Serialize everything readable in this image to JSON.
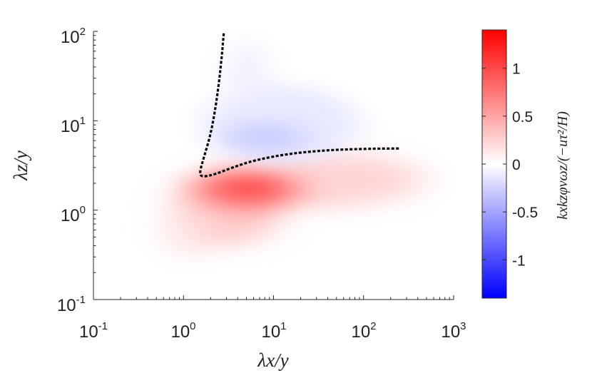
{
  "chart_data": {
    "type": "heatmap",
    "xlabel": "λx/y",
    "ylabel": "λz/y",
    "xscale": "log",
    "yscale": "log",
    "xlim": [
      0.1,
      1000
    ],
    "ylim": [
      0.1,
      100
    ],
    "x_ticks": [
      {
        "base": "10",
        "exp": "-1"
      },
      {
        "base": "10",
        "exp": "0"
      },
      {
        "base": "10",
        "exp": "1"
      },
      {
        "base": "10",
        "exp": "2"
      },
      {
        "base": "10",
        "exp": "3"
      }
    ],
    "y_ticks": [
      {
        "base": "10",
        "exp": "-1"
      },
      {
        "base": "10",
        "exp": "0"
      },
      {
        "base": "10",
        "exp": "1"
      },
      {
        "base": "10",
        "exp": "2"
      }
    ],
    "colorbar": {
      "label": "kxkzφvωz/(−uτ²/H)",
      "range": [
        -1.4,
        1.4
      ],
      "ticks": [
        1,
        0.5,
        0,
        -0.5,
        -1
      ],
      "tick_labels": [
        "1",
        "0.5",
        "0",
        "-0.5",
        "-1"
      ],
      "colors": {
        "low": "#0000ff",
        "mid": "#ffffff",
        "high": "#ff0000"
      }
    },
    "blobs": [
      {
        "sign": "positive",
        "x_center": 5,
        "y_center": 1.7,
        "peak": 0.9
      },
      {
        "sign": "negative",
        "x_center": 8,
        "y_center": 7,
        "peak": -0.25
      }
    ],
    "contour": {
      "style": "dashed black",
      "points": [
        [
          2.8,
          95
        ],
        [
          2.6,
          40
        ],
        [
          2.3,
          15
        ],
        [
          2.0,
          7
        ],
        [
          1.7,
          4
        ],
        [
          1.5,
          2.6
        ],
        [
          1.6,
          2.35
        ],
        [
          2.2,
          2.5
        ],
        [
          3.5,
          3.0
        ],
        [
          6,
          3.6
        ],
        [
          15,
          4.3
        ],
        [
          40,
          4.7
        ],
        [
          100,
          4.85
        ],
        [
          250,
          4.9
        ]
      ]
    }
  }
}
